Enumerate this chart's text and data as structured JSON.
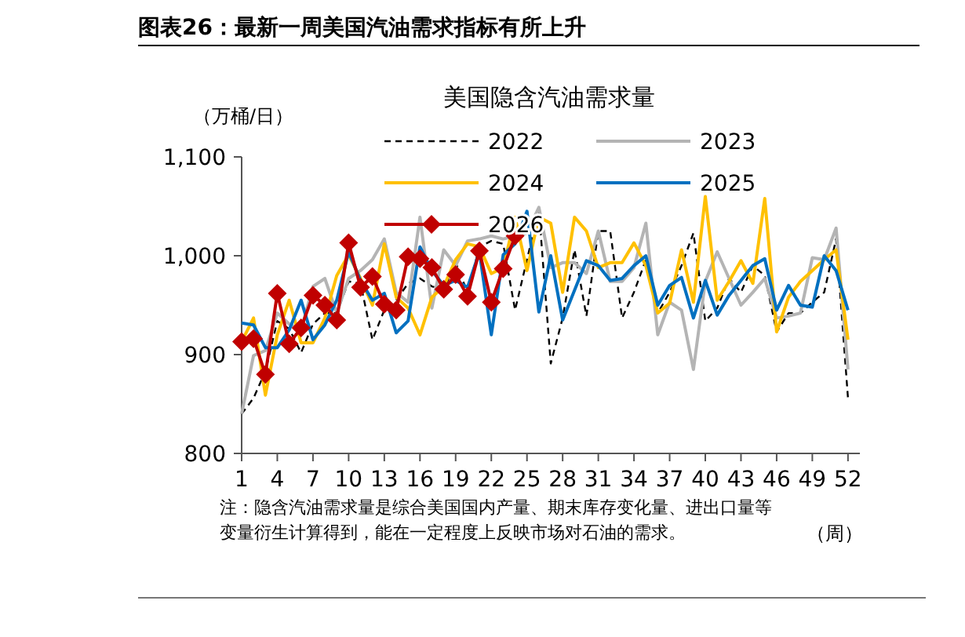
{
  "chart_data": {
    "type": "line",
    "title": "美国隐含汽油需求量",
    "subtitle": "图表26：最新一周美国汽油需求指标有所上升",
    "ylabel": "（万桶/日）",
    "xlabel": "（周）",
    "annotations": [
      "注：隐含汽油需求量是综合美国国内产量、期末库存变化量、进出口量等变量衍生计算得到，能在一定程度上反映市场对石油的需求。"
    ],
    "x": [
      1,
      2,
      3,
      4,
      5,
      6,
      7,
      8,
      9,
      10,
      11,
      12,
      13,
      14,
      15,
      16,
      17,
      18,
      19,
      20,
      21,
      22,
      23,
      24,
      25,
      26,
      27,
      28,
      29,
      30,
      31,
      32,
      33,
      34,
      35,
      36,
      37,
      38,
      39,
      40,
      41,
      42,
      43,
      44,
      45,
      46,
      47,
      48,
      49,
      50,
      51,
      52
    ],
    "xlim": [
      1,
      53
    ],
    "xticks": [
      1,
      4,
      7,
      10,
      13,
      16,
      19,
      22,
      25,
      28,
      31,
      34,
      37,
      40,
      43,
      46,
      49,
      52
    ],
    "ylim": [
      800,
      1100
    ],
    "yticks": [
      800,
      900,
      {
        "value": 1000,
        "label": "1,000"
      },
      {
        "value": 1100,
        "label": "1,100"
      }
    ],
    "grid": false,
    "legend": "top",
    "marker": "none",
    "series": [
      {
        "name": "2022",
        "color": "#000000",
        "line_style": "dashed",
        "values": [
          840,
          856,
          883,
          934,
          926,
          902,
          931,
          942,
          942,
          974,
          972,
          915,
          945,
          955,
          972,
          977,
          969,
          966,
          993,
          963,
          1009,
          1015,
          1012,
          945,
          996,
          1047,
          891,
          937,
          1006,
          939,
          1025,
          1025,
          937,
          963,
          996,
          942,
          963,
          990,
          1023,
          934,
          947,
          977,
          963,
          990,
          980,
          923,
          942,
          942,
          953,
          963,
          1017,
          856
        ]
      },
      {
        "name": "2023",
        "color": "#b4b4b4",
        "values": [
          840,
          899,
          904,
          942,
          931,
          925,
          969,
          977,
          942,
          977,
          985,
          996,
          1017,
          963,
          953,
          1039,
          947,
          1006,
          990,
          1015,
          1017,
          1020,
          1017,
          1020,
          1023,
          1049,
          988,
          993,
          993,
          982,
          1025,
          974,
          974,
          988,
          1033,
          920,
          953,
          945,
          885,
          974,
          1004,
          977,
          950,
          963,
          977,
          937,
          939,
          942,
          998,
          996,
          1028,
          885
        ]
      },
      {
        "name": "2024",
        "color": "#ffc000",
        "values": [
          913,
          937,
          859,
          920,
          955,
          912,
          912,
          937,
          980,
          1001,
          977,
          950,
          1012,
          958,
          947,
          920,
          958,
          969,
          996,
          1012,
          1009,
          982,
          988,
          1039,
          985,
          1039,
          1033,
          963,
          1039,
          1025,
          988,
          993,
          993,
          1013,
          990,
          942,
          952,
          1006,
          953,
          1060,
          955,
          974,
          995,
          972,
          1058,
          923,
          958,
          974,
          985,
          996,
          1006,
          915
        ]
      },
      {
        "name": "2025",
        "color": "#0070c0",
        "values": [
          932,
          930,
          907,
          907,
          925,
          955,
          915,
          930,
          955,
          1004,
          975,
          955,
          962,
          922,
          934,
          1009,
          985,
          970,
          975,
          968,
          1004,
          920,
          1001,
          1012,
          1045,
          943,
          1000,
          935,
          965,
          995,
          990,
          975,
          977,
          990,
          1000,
          950,
          970,
          978,
          937,
          975,
          940,
          960,
          975,
          990,
          997,
          945,
          970,
          950,
          948,
          1000,
          985,
          945
        ]
      },
      {
        "name": "2026",
        "color": "#c00000",
        "marker": "diamond",
        "x": [
          1,
          2,
          3,
          4,
          5,
          6,
          7,
          8,
          9,
          10,
          11,
          12,
          13,
          14,
          15,
          16,
          17,
          18,
          19,
          20,
          21,
          22,
          23,
          24
        ],
        "values": [
          913,
          916,
          880,
          962,
          911,
          927,
          960,
          950,
          935,
          1013,
          968,
          979,
          951,
          945,
          999,
          997,
          988,
          966,
          981,
          959,
          1005,
          953,
          987,
          1020
        ]
      }
    ]
  }
}
